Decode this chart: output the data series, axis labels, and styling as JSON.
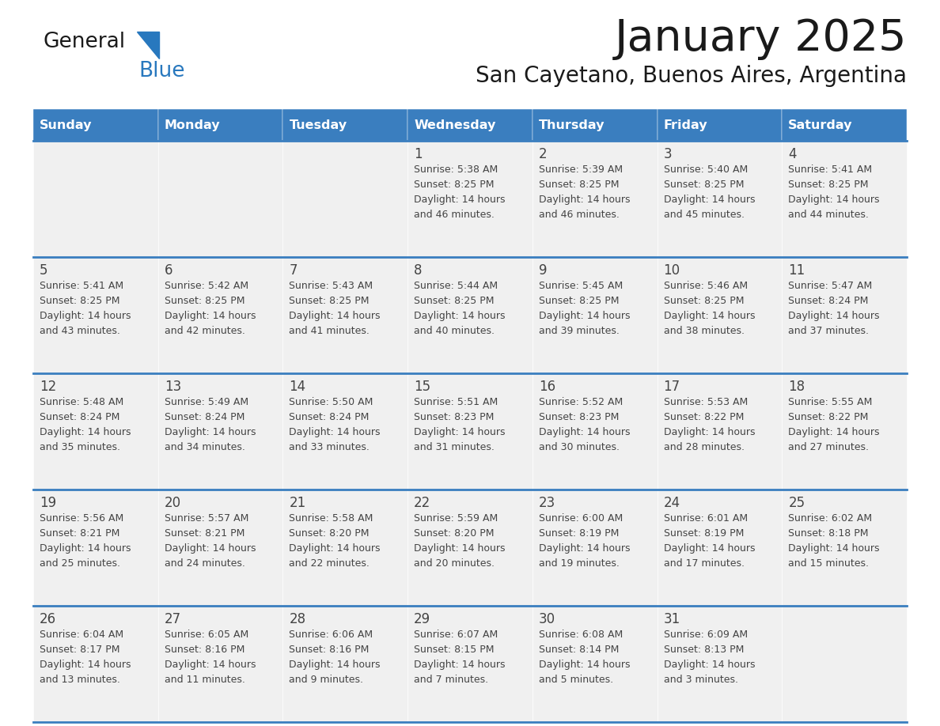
{
  "title": "January 2025",
  "subtitle": "San Cayetano, Buenos Aires, Argentina",
  "header_color": "#3a7ebf",
  "header_text_color": "#ffffff",
  "cell_bg_color": "#f0f0f0",
  "logo_black": "#1a1a1a",
  "logo_blue": "#2878be",
  "triangle_color": "#2878be",
  "title_color": "#1a1a1a",
  "subtitle_color": "#1a1a1a",
  "line_color": "#3a7ebf",
  "text_color": "#444444",
  "day_names": [
    "Sunday",
    "Monday",
    "Tuesday",
    "Wednesday",
    "Thursday",
    "Friday",
    "Saturday"
  ],
  "days": [
    {
      "day": 1,
      "col": 3,
      "row": 0,
      "sunrise": "5:38 AM",
      "sunset": "8:25 PM",
      "daylight_hours": 14,
      "daylight_minutes": 46
    },
    {
      "day": 2,
      "col": 4,
      "row": 0,
      "sunrise": "5:39 AM",
      "sunset": "8:25 PM",
      "daylight_hours": 14,
      "daylight_minutes": 46
    },
    {
      "day": 3,
      "col": 5,
      "row": 0,
      "sunrise": "5:40 AM",
      "sunset": "8:25 PM",
      "daylight_hours": 14,
      "daylight_minutes": 45
    },
    {
      "day": 4,
      "col": 6,
      "row": 0,
      "sunrise": "5:41 AM",
      "sunset": "8:25 PM",
      "daylight_hours": 14,
      "daylight_minutes": 44
    },
    {
      "day": 5,
      "col": 0,
      "row": 1,
      "sunrise": "5:41 AM",
      "sunset": "8:25 PM",
      "daylight_hours": 14,
      "daylight_minutes": 43
    },
    {
      "day": 6,
      "col": 1,
      "row": 1,
      "sunrise": "5:42 AM",
      "sunset": "8:25 PM",
      "daylight_hours": 14,
      "daylight_minutes": 42
    },
    {
      "day": 7,
      "col": 2,
      "row": 1,
      "sunrise": "5:43 AM",
      "sunset": "8:25 PM",
      "daylight_hours": 14,
      "daylight_minutes": 41
    },
    {
      "day": 8,
      "col": 3,
      "row": 1,
      "sunrise": "5:44 AM",
      "sunset": "8:25 PM",
      "daylight_hours": 14,
      "daylight_minutes": 40
    },
    {
      "day": 9,
      "col": 4,
      "row": 1,
      "sunrise": "5:45 AM",
      "sunset": "8:25 PM",
      "daylight_hours": 14,
      "daylight_minutes": 39
    },
    {
      "day": 10,
      "col": 5,
      "row": 1,
      "sunrise": "5:46 AM",
      "sunset": "8:25 PM",
      "daylight_hours": 14,
      "daylight_minutes": 38
    },
    {
      "day": 11,
      "col": 6,
      "row": 1,
      "sunrise": "5:47 AM",
      "sunset": "8:24 PM",
      "daylight_hours": 14,
      "daylight_minutes": 37
    },
    {
      "day": 12,
      "col": 0,
      "row": 2,
      "sunrise": "5:48 AM",
      "sunset": "8:24 PM",
      "daylight_hours": 14,
      "daylight_minutes": 35
    },
    {
      "day": 13,
      "col": 1,
      "row": 2,
      "sunrise": "5:49 AM",
      "sunset": "8:24 PM",
      "daylight_hours": 14,
      "daylight_minutes": 34
    },
    {
      "day": 14,
      "col": 2,
      "row": 2,
      "sunrise": "5:50 AM",
      "sunset": "8:24 PM",
      "daylight_hours": 14,
      "daylight_minutes": 33
    },
    {
      "day": 15,
      "col": 3,
      "row": 2,
      "sunrise": "5:51 AM",
      "sunset": "8:23 PM",
      "daylight_hours": 14,
      "daylight_minutes": 31
    },
    {
      "day": 16,
      "col": 4,
      "row": 2,
      "sunrise": "5:52 AM",
      "sunset": "8:23 PM",
      "daylight_hours": 14,
      "daylight_minutes": 30
    },
    {
      "day": 17,
      "col": 5,
      "row": 2,
      "sunrise": "5:53 AM",
      "sunset": "8:22 PM",
      "daylight_hours": 14,
      "daylight_minutes": 28
    },
    {
      "day": 18,
      "col": 6,
      "row": 2,
      "sunrise": "5:55 AM",
      "sunset": "8:22 PM",
      "daylight_hours": 14,
      "daylight_minutes": 27
    },
    {
      "day": 19,
      "col": 0,
      "row": 3,
      "sunrise": "5:56 AM",
      "sunset": "8:21 PM",
      "daylight_hours": 14,
      "daylight_minutes": 25
    },
    {
      "day": 20,
      "col": 1,
      "row": 3,
      "sunrise": "5:57 AM",
      "sunset": "8:21 PM",
      "daylight_hours": 14,
      "daylight_minutes": 24
    },
    {
      "day": 21,
      "col": 2,
      "row": 3,
      "sunrise": "5:58 AM",
      "sunset": "8:20 PM",
      "daylight_hours": 14,
      "daylight_minutes": 22
    },
    {
      "day": 22,
      "col": 3,
      "row": 3,
      "sunrise": "5:59 AM",
      "sunset": "8:20 PM",
      "daylight_hours": 14,
      "daylight_minutes": 20
    },
    {
      "day": 23,
      "col": 4,
      "row": 3,
      "sunrise": "6:00 AM",
      "sunset": "8:19 PM",
      "daylight_hours": 14,
      "daylight_minutes": 19
    },
    {
      "day": 24,
      "col": 5,
      "row": 3,
      "sunrise": "6:01 AM",
      "sunset": "8:19 PM",
      "daylight_hours": 14,
      "daylight_minutes": 17
    },
    {
      "day": 25,
      "col": 6,
      "row": 3,
      "sunrise": "6:02 AM",
      "sunset": "8:18 PM",
      "daylight_hours": 14,
      "daylight_minutes": 15
    },
    {
      "day": 26,
      "col": 0,
      "row": 4,
      "sunrise": "6:04 AM",
      "sunset": "8:17 PM",
      "daylight_hours": 14,
      "daylight_minutes": 13
    },
    {
      "day": 27,
      "col": 1,
      "row": 4,
      "sunrise": "6:05 AM",
      "sunset": "8:16 PM",
      "daylight_hours": 14,
      "daylight_minutes": 11
    },
    {
      "day": 28,
      "col": 2,
      "row": 4,
      "sunrise": "6:06 AM",
      "sunset": "8:16 PM",
      "daylight_hours": 14,
      "daylight_minutes": 9
    },
    {
      "day": 29,
      "col": 3,
      "row": 4,
      "sunrise": "6:07 AM",
      "sunset": "8:15 PM",
      "daylight_hours": 14,
      "daylight_minutes": 7
    },
    {
      "day": 30,
      "col": 4,
      "row": 4,
      "sunrise": "6:08 AM",
      "sunset": "8:14 PM",
      "daylight_hours": 14,
      "daylight_minutes": 5
    },
    {
      "day": 31,
      "col": 5,
      "row": 4,
      "sunrise": "6:09 AM",
      "sunset": "8:13 PM",
      "daylight_hours": 14,
      "daylight_minutes": 3
    }
  ]
}
